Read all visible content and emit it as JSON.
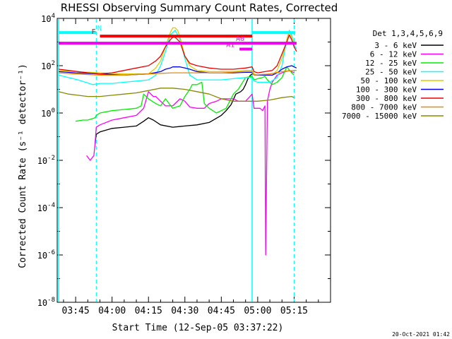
{
  "chart_data": {
    "type": "line",
    "title": "RHESSI Observing Summary Count Rates, Corrected",
    "xlabel": "Start Time (12-Sep-05 03:37:22)",
    "ylabel": "Corrected Count Rate (s⁻¹ detector⁻¹)",
    "yscale": "log",
    "xlim": [
      217.4,
      330.0
    ],
    "ylim_exp": [
      -8,
      4
    ],
    "xticks": [
      {
        "v": 225,
        "label": "03:45"
      },
      {
        "v": 240,
        "label": "04:00"
      },
      {
        "v": 255,
        "label": "04:15"
      },
      {
        "v": 270,
        "label": "04:30"
      },
      {
        "v": 285,
        "label": "04:45"
      },
      {
        "v": 300,
        "label": "05:00"
      },
      {
        "v": 315,
        "label": "05:15"
      }
    ],
    "yticks": [
      {
        "exp": 4,
        "label": "10",
        "sup": "4"
      },
      {
        "exp": 2,
        "label": "10",
        "sup": "2"
      },
      {
        "exp": 0,
        "label": "10",
        "sup": "0"
      },
      {
        "exp": -2,
        "label": "10",
        "sup": "-2"
      },
      {
        "exp": -4,
        "label": "10",
        "sup": "-4"
      },
      {
        "exp": -6,
        "label": "10",
        "sup": "-6"
      },
      {
        "exp": -8,
        "label": "10",
        "sup": "-8"
      }
    ],
    "legend_title": "Det 1,3,4,5,6,9",
    "legend_position": "right",
    "series": [
      {
        "name": "3 - 6 keV",
        "color": "#000000",
        "x": [
          233,
          233.5,
          235,
          240,
          245,
          250,
          253,
          255,
          257,
          260,
          265,
          270,
          275,
          280,
          285,
          287,
          289,
          291,
          293,
          294,
          295,
          296,
          297,
          297.8
        ],
        "logy": [
          -1.3,
          -0.9,
          -0.8,
          -0.65,
          -0.6,
          -0.55,
          -0.35,
          -0.2,
          -0.3,
          -0.5,
          -0.6,
          -0.55,
          -0.5,
          -0.4,
          -0.1,
          0.1,
          0.35,
          0.8,
          0.9,
          1.0,
          1.2,
          1.45,
          1.6,
          1.65
        ]
      },
      {
        "name": "6 - 12 keV",
        "color": "#ff00ff",
        "x": [
          229.5,
          231,
          232.5,
          233,
          233.5,
          235,
          240,
          245,
          250,
          253,
          255,
          257,
          258,
          260,
          262,
          265,
          268,
          270,
          272,
          275,
          278,
          280,
          283,
          285,
          288,
          290,
          292,
          295,
          297.7,
          298.5,
          299,
          300,
          301,
          302,
          302.5,
          303,
          303.3,
          304,
          305,
          306,
          308,
          310,
          313,
          315
        ],
        "logy": [
          -1.8,
          -2.0,
          -1.8,
          -1.3,
          -0.6,
          -0.5,
          -0.3,
          -0.2,
          -0.1,
          0.2,
          0.9,
          0.7,
          0.7,
          0.5,
          0.3,
          0.3,
          0.6,
          0.5,
          0.25,
          0.2,
          0.2,
          0.4,
          0.5,
          0.6,
          0.6,
          0.6,
          0.5,
          0.5,
          0.8,
          0.2,
          0.2,
          0.2,
          0.2,
          0.1,
          0.2,
          0.3,
          -6.0,
          0.5,
          1.0,
          1.3,
          1.6,
          1.7,
          1.8,
          1.7
        ]
      },
      {
        "name": "12 - 25 keV",
        "color": "#00ee00",
        "x": [
          225,
          228,
          230,
          233,
          233.5,
          235,
          240,
          245,
          250,
          252,
          253,
          255,
          258,
          260,
          262,
          265,
          268,
          270,
          272,
          273,
          275,
          277,
          278,
          280,
          283,
          285,
          287,
          290,
          292,
          295,
          297.7,
          298.5,
          300,
          302,
          303,
          304,
          305,
          306,
          308,
          310,
          312,
          314,
          315
        ],
        "logy": [
          -0.35,
          -0.3,
          -0.3,
          -0.2,
          -0.1,
          0.0,
          0.1,
          0.15,
          0.2,
          0.3,
          0.8,
          0.6,
          0.4,
          0.3,
          0.6,
          0.2,
          0.3,
          0.7,
          1.0,
          1.2,
          1.2,
          1.3,
          0.4,
          0.2,
          0.0,
          0.1,
          0.2,
          0.8,
          1.0,
          1.5,
          1.55,
          1.4,
          1.45,
          1.5,
          1.55,
          1.4,
          1.3,
          1.2,
          1.3,
          1.5,
          1.95,
          1.7,
          1.6
        ]
      },
      {
        "name": "25 - 50 keV",
        "color": "#00ffff",
        "x": [
          218,
          222,
          226,
          229,
          232,
          235,
          240,
          245,
          250,
          255,
          258,
          260,
          262,
          264,
          266,
          268,
          270,
          272,
          275,
          280,
          285,
          290,
          295,
          297.7,
          298.5,
          300,
          302,
          305,
          308,
          310,
          312,
          313,
          314,
          315,
          316
        ],
        "logy": [
          1.6,
          1.5,
          1.4,
          1.3,
          1.2,
          1.25,
          1.25,
          1.3,
          1.35,
          1.4,
          1.6,
          2.0,
          2.6,
          3.3,
          3.5,
          3.1,
          2.3,
          1.6,
          1.4,
          1.4,
          1.4,
          1.45,
          1.5,
          1.5,
          1.35,
          1.3,
          1.3,
          1.3,
          1.5,
          2.0,
          3.1,
          3.5,
          3.3,
          2.9,
          2.7
        ]
      },
      {
        "name": "50 - 100 keV",
        "color": "#ddcc00",
        "x": [
          218,
          225,
          235,
          245,
          255,
          258,
          260,
          262,
          264,
          265,
          266,
          267,
          268,
          270,
          272,
          275,
          280,
          285,
          290,
          295,
          297.7,
          298.5,
          300,
          303,
          306,
          308,
          310,
          312,
          313,
          314,
          315,
          316
        ],
        "logy": [
          1.8,
          1.75,
          1.7,
          1.65,
          1.65,
          1.9,
          2.2,
          2.8,
          3.4,
          3.6,
          3.6,
          3.5,
          3.2,
          2.4,
          2.0,
          1.8,
          1.75,
          1.75,
          1.75,
          1.8,
          1.8,
          1.65,
          1.6,
          1.6,
          1.6,
          1.8,
          2.3,
          3.1,
          3.45,
          3.2,
          3.0,
          2.9
        ]
      },
      {
        "name": "100 - 300 keV",
        "color": "#0000ee",
        "x": [
          218,
          225,
          235,
          245,
          255,
          260,
          262,
          264,
          265,
          266,
          268,
          270,
          272,
          275,
          280,
          285,
          290,
          295,
          297.7,
          298.5,
          300,
          303,
          306,
          308,
          310,
          312,
          314,
          315,
          316
        ],
        "logy": [
          1.75,
          1.7,
          1.65,
          1.6,
          1.65,
          1.75,
          1.85,
          1.9,
          1.95,
          1.95,
          1.95,
          1.9,
          1.85,
          1.75,
          1.7,
          1.7,
          1.7,
          1.72,
          1.72,
          1.6,
          1.6,
          1.6,
          1.6,
          1.7,
          1.85,
          1.95,
          2.0,
          1.95,
          1.9
        ]
      },
      {
        "name": "300 - 800 keV",
        "color": "#ee0000",
        "x": [
          218,
          222,
          226,
          230,
          235,
          240,
          245,
          250,
          255,
          258,
          260,
          262,
          264,
          265,
          266,
          268,
          270,
          272,
          275,
          280,
          285,
          290,
          295,
          297.7,
          298.5,
          300,
          303,
          306,
          308,
          310,
          312,
          313,
          314,
          315,
          316
        ],
        "logy": [
          1.85,
          1.8,
          1.75,
          1.7,
          1.65,
          1.7,
          1.8,
          1.9,
          2.0,
          2.2,
          2.4,
          2.8,
          3.1,
          3.2,
          3.2,
          3.0,
          2.4,
          2.1,
          2.0,
          1.9,
          1.85,
          1.85,
          1.9,
          1.95,
          1.75,
          1.7,
          1.75,
          1.8,
          2.0,
          2.5,
          3.0,
          3.3,
          3.1,
          2.8,
          2.6
        ]
      },
      {
        "name": "800 - 7000 keV",
        "color": "#ee8800",
        "x": [
          218,
          225,
          235,
          245,
          255,
          265,
          275,
          285,
          295,
          297.7,
          298.5,
          305,
          310,
          315,
          316
        ],
        "logy": [
          1.7,
          1.65,
          1.6,
          1.6,
          1.65,
          1.7,
          1.7,
          1.7,
          1.75,
          1.75,
          1.6,
          1.65,
          1.75,
          1.8,
          1.8
        ]
      },
      {
        "name": "7000 - 15000 keV",
        "color": "#888800",
        "x": [
          218,
          222,
          226,
          230,
          235,
          240,
          245,
          250,
          255,
          260,
          265,
          270,
          275,
          280,
          285,
          290,
          295,
          298,
          300,
          305,
          310,
          314,
          315
        ],
        "logy": [
          0.9,
          0.8,
          0.75,
          0.7,
          0.7,
          0.75,
          0.8,
          0.85,
          0.95,
          1.05,
          1.05,
          1.0,
          0.9,
          0.8,
          0.6,
          0.5,
          0.5,
          0.5,
          0.5,
          0.55,
          0.65,
          0.7,
          0.65
        ]
      }
    ],
    "markers": {
      "vlines_solid": [
        {
          "x": 218,
          "color": "#00ffff"
        },
        {
          "x": 297.7,
          "color": "#00ffff"
        }
      ],
      "vlines_dashed": [
        {
          "x": 233.5,
          "color": "#00ffff"
        },
        {
          "x": 315,
          "color": "#00ffff"
        }
      ],
      "bars": [
        {
          "label": "N",
          "x0": 218,
          "x1": 233.5,
          "logy": 3.4,
          "color": "#00ffff",
          "label_x": 234
        },
        {
          "label": "",
          "x0": 297.7,
          "x1": 315.5,
          "logy": 3.4,
          "color": "#00ffff"
        },
        {
          "label": "F",
          "x0": 235,
          "x1": 297.7,
          "logy": 3.25,
          "color": "#ee0000",
          "label_x": 231.5
        },
        {
          "label": "A0",
          "x0": 218,
          "x1": 316,
          "logy": 2.95,
          "color": "#ee00ee",
          "label_x": 291
        },
        {
          "label": "A1",
          "x0": 292.5,
          "x1": 297.7,
          "logy": 2.7,
          "color": "#ee00ee",
          "label_x": 287
        }
      ]
    }
  },
  "footer": {
    "timestamp": "20-Oct-2021 01:42"
  }
}
